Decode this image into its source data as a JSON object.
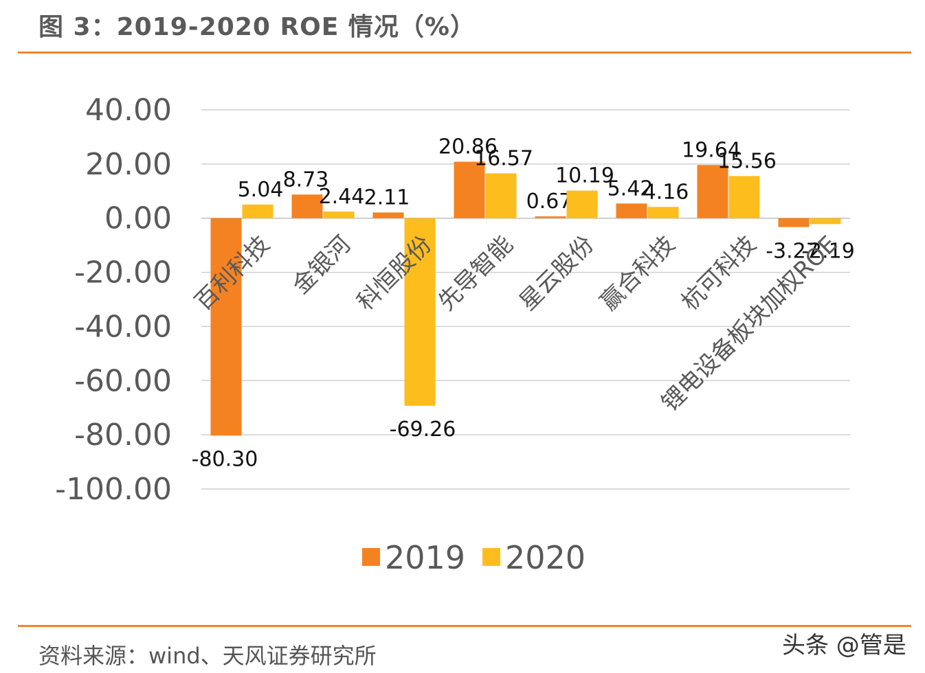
{
  "header": {
    "title": "图 3：2019-2020 ROE 情况（%）"
  },
  "footer": {
    "source": "资料来源：wind、天风证券研究所",
    "watermark": "头条 @管是"
  },
  "colors": {
    "series_2019": "#f58220",
    "series_2020": "#fdbd1d",
    "accent_rule": "#f0852b",
    "grid": "#d0d0d0",
    "axis_text": "#595959"
  },
  "chart_data": {
    "type": "bar",
    "title": "",
    "xlabel": "",
    "ylabel": "",
    "ylim": [
      -100,
      40
    ],
    "yticks": [
      "40.00",
      "20.00",
      "0.00",
      "-20.00",
      "-40.00",
      "-60.00",
      "-80.00",
      "-100.00"
    ],
    "grid": true,
    "legend_position": "bottom",
    "categories": [
      "百利科技",
      "金银河",
      "科恒股份",
      "先导智能",
      "星云股份",
      "赢合科技",
      "杭可科技",
      "锂电设备板块加权ROE"
    ],
    "series": [
      {
        "name": "2019",
        "values": [
          -80.3,
          8.73,
          2.11,
          20.86,
          0.67,
          5.42,
          19.64,
          -3.27
        ],
        "labels": [
          "-80.30",
          "8.73",
          "2.11",
          "20.86",
          "0.67",
          "5.42",
          "19.64",
          "-3.27"
        ]
      },
      {
        "name": "2020",
        "values": [
          5.04,
          2.44,
          -69.26,
          16.57,
          10.19,
          4.16,
          15.56,
          -2.19
        ],
        "labels": [
          "5.04",
          "2.44",
          "-69.26",
          "16.57",
          "10.19",
          "4.16",
          "15.56",
          "-2.19"
        ]
      }
    ]
  }
}
